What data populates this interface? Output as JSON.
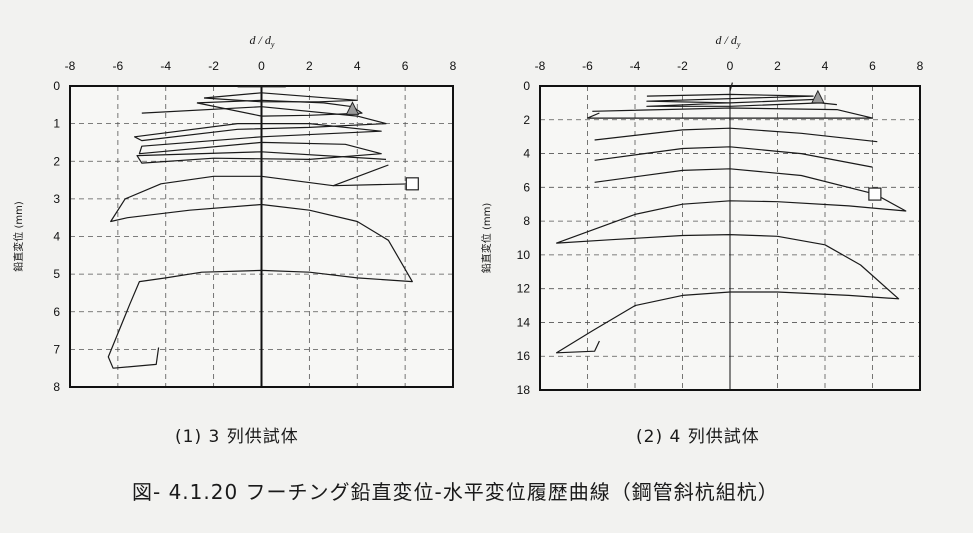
{
  "figure_title": "図- 4.1.20 フーチング鉛直変位-水平変位履歴曲線（鋼管斜杭組杭）",
  "chart_data": [
    {
      "type": "line",
      "caption": "(1) 3 列供試体",
      "xlabel": "d / dy",
      "ylabel": "鉛直変位 (mm)",
      "xlim": [
        -8,
        8
      ],
      "ylim": [
        0,
        8
      ],
      "y_inverted": true,
      "x_axis_position": "top",
      "x_ticks": [
        -8,
        -6,
        -4,
        -2,
        0,
        2,
        4,
        6,
        8
      ],
      "y_ticks": [
        0,
        1,
        2,
        3,
        4,
        5,
        6,
        7,
        8
      ],
      "grid": "dashed",
      "markers": [
        {
          "shape": "triangle",
          "x": 3.8,
          "y": 0.62
        },
        {
          "shape": "square",
          "x": 6.3,
          "y": 2.6
        }
      ],
      "series": [
        {
          "points": [
            [
              -1.0,
              0.02
            ],
            [
              1.0,
              0.02
            ],
            [
              0.0,
              0.0
            ],
            [
              -1.0,
              0.02
            ]
          ]
        },
        {
          "points": [
            [
              -2.4,
              0.32
            ],
            [
              0.0,
              0.18
            ],
            [
              2.4,
              0.3
            ],
            [
              4.0,
              0.38
            ],
            [
              2.4,
              0.42
            ],
            [
              0.0,
              0.42
            ],
            [
              -2.4,
              0.32
            ]
          ]
        },
        {
          "points": [
            [
              -2.7,
              0.45
            ],
            [
              0.0,
              0.38
            ],
            [
              2.6,
              0.45
            ],
            [
              3.8,
              0.55
            ],
            [
              4.2,
              0.72
            ],
            [
              2.0,
              0.78
            ],
            [
              0.0,
              0.8
            ],
            [
              -2.7,
              0.45
            ]
          ]
        },
        {
          "points": [
            [
              -5.0,
              0.72
            ],
            [
              0.0,
              0.55
            ],
            [
              4.0,
              0.8
            ],
            [
              5.2,
              1.0
            ],
            [
              2.0,
              1.1
            ],
            [
              -1.0,
              1.15
            ],
            [
              -5.0,
              1.45
            ],
            [
              -5.3,
              1.35
            ],
            [
              -1.0,
              1.0
            ],
            [
              2.0,
              1.0
            ],
            [
              5.0,
              1.2
            ],
            [
              0.0,
              1.35
            ],
            [
              -5.0,
              1.6
            ],
            [
              -5.1,
              1.8
            ],
            [
              0.0,
              1.5
            ],
            [
              3.5,
              1.55
            ],
            [
              5.0,
              1.8
            ],
            [
              2.0,
              1.95
            ],
            [
              -2.0,
              1.92
            ],
            [
              -5.0,
              2.05
            ],
            [
              -5.2,
              1.85
            ],
            [
              0.0,
              1.75
            ],
            [
              5.2,
              1.95
            ]
          ]
        },
        {
          "points": [
            [
              5.3,
              2.1
            ],
            [
              3.0,
              2.65
            ],
            [
              0.0,
              2.4
            ],
            [
              -2.0,
              2.4
            ],
            [
              -4.2,
              2.6
            ],
            [
              -5.7,
              3.0
            ],
            [
              -6.3,
              3.6
            ],
            [
              -5.6,
              3.5
            ],
            [
              -3.0,
              3.3
            ],
            [
              0.0,
              3.15
            ],
            [
              2.0,
              3.3
            ],
            [
              4.0,
              3.6
            ],
            [
              5.3,
              4.1
            ],
            [
              6.3,
              5.2
            ],
            [
              4.0,
              5.1
            ],
            [
              2.0,
              4.95
            ],
            [
              0.0,
              4.9
            ],
            [
              -2.5,
              4.95
            ],
            [
              -4.0,
              5.1
            ],
            [
              -5.1,
              5.2
            ],
            [
              -5.5,
              5.8
            ],
            [
              -6.4,
              7.2
            ],
            [
              -6.2,
              7.5
            ],
            [
              -4.4,
              7.4
            ],
            [
              -4.3,
              6.95
            ]
          ]
        },
        {
          "points": [
            [
              3.0,
              2.65
            ],
            [
              6.3,
              2.6
            ]
          ]
        }
      ]
    },
    {
      "type": "line",
      "caption": "(2) 4 列供試体",
      "xlabel": "d / dy",
      "ylabel": "鉛直変位 (mm)",
      "xlim": [
        -8,
        8
      ],
      "ylim": [
        0,
        18
      ],
      "y_inverted": true,
      "x_axis_position": "top",
      "x_ticks": [
        -8,
        -6,
        -4,
        -2,
        0,
        2,
        4,
        6,
        8
      ],
      "y_ticks": [
        0,
        2,
        4,
        6,
        8,
        10,
        12,
        14,
        16,
        18
      ],
      "grid": "dashed",
      "markers": [
        {
          "shape": "triangle",
          "x": 3.7,
          "y": 0.7
        },
        {
          "shape": "square",
          "x": 6.1,
          "y": 6.4
        }
      ],
      "series": [
        {
          "points": [
            [
              0.0,
              0.3
            ],
            [
              0.1,
              -0.2
            ]
          ]
        },
        {
          "points": [
            [
              -3.5,
              0.6
            ],
            [
              0.0,
              0.5
            ],
            [
              3.5,
              0.6
            ],
            [
              -3.5,
              0.9
            ],
            [
              0.0,
              1.0
            ],
            [
              3.5,
              0.8
            ],
            [
              -3.5,
              1.2
            ],
            [
              0.0,
              1.2
            ],
            [
              3.8,
              1.0
            ],
            [
              4.5,
              1.1
            ]
          ]
        },
        {
          "points": [
            [
              -5.8,
              1.5
            ],
            [
              0.0,
              1.3
            ],
            [
              4.5,
              1.4
            ],
            [
              6.0,
              1.9
            ],
            [
              0.0,
              1.9
            ],
            [
              -6.0,
              1.9
            ],
            [
              -5.5,
              1.6
            ]
          ]
        },
        {
          "points": [
            [
              -5.7,
              3.2
            ],
            [
              -2.0,
              2.6
            ],
            [
              0.0,
              2.5
            ],
            [
              3.0,
              2.8
            ],
            [
              6.2,
              3.3
            ]
          ]
        },
        {
          "points": [
            [
              -5.7,
              4.4
            ],
            [
              -2.0,
              3.7
            ],
            [
              0.0,
              3.6
            ],
            [
              3.0,
              4.0
            ],
            [
              6.0,
              4.8
            ]
          ]
        },
        {
          "points": [
            [
              -5.7,
              5.7
            ],
            [
              -2.0,
              5.0
            ],
            [
              0.0,
              4.9
            ],
            [
              3.0,
              5.3
            ],
            [
              6.1,
              6.4
            ]
          ]
        },
        {
          "points": [
            [
              6.1,
              6.4
            ],
            [
              7.4,
              7.4
            ],
            [
              5.0,
              7.1
            ],
            [
              2.0,
              6.85
            ],
            [
              0.0,
              6.8
            ],
            [
              -2.0,
              7.0
            ],
            [
              -4.0,
              7.6
            ],
            [
              -7.3,
              9.3
            ],
            [
              -5.0,
              9.1
            ],
            [
              -2.0,
              8.85
            ],
            [
              0.0,
              8.8
            ],
            [
              2.0,
              8.9
            ],
            [
              4.0,
              9.4
            ],
            [
              5.5,
              10.6
            ],
            [
              7.1,
              12.6
            ],
            [
              5.0,
              12.4
            ],
            [
              2.0,
              12.2
            ],
            [
              0.0,
              12.2
            ],
            [
              -2.0,
              12.4
            ],
            [
              -4.0,
              13.0
            ],
            [
              -5.8,
              14.5
            ],
            [
              -7.3,
              15.8
            ],
            [
              -5.7,
              15.7
            ],
            [
              -5.5,
              15.1
            ]
          ]
        }
      ]
    }
  ]
}
